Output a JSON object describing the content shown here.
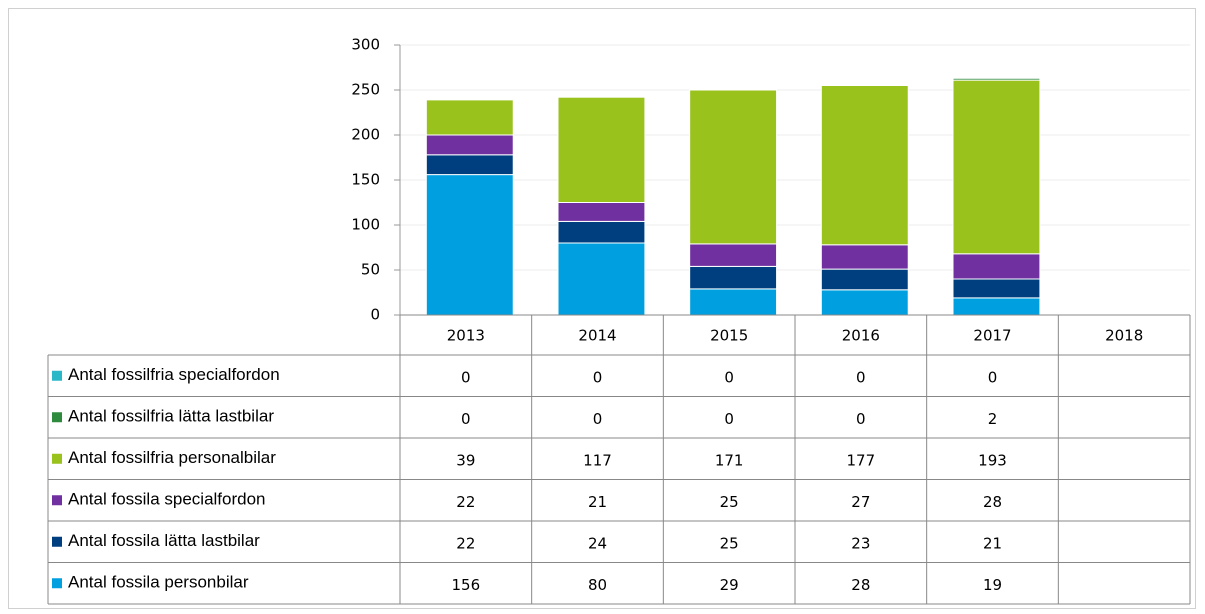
{
  "chart_data": {
    "type": "stacked-bar",
    "categories": [
      "2013",
      "2014",
      "2015",
      "2016",
      "2017",
      "2018"
    ],
    "series": [
      {
        "name": "Antal fossilfria specialfordon",
        "color": "#2ab7c8",
        "values": [
          0,
          0,
          0,
          0,
          0,
          null
        ]
      },
      {
        "name": "Antal fossilfria lätta lastbilar",
        "color": "#2e8b3e",
        "values": [
          0,
          0,
          0,
          0,
          2,
          null
        ]
      },
      {
        "name": "Antal fossilfria personalbilar",
        "color": "#99c21c",
        "values": [
          39,
          117,
          171,
          177,
          193,
          null
        ]
      },
      {
        "name": "Antal fossila specialfordon",
        "color": "#7030a0",
        "values": [
          22,
          21,
          25,
          27,
          28,
          null
        ]
      },
      {
        "name": "Antal fossila lätta lastbilar",
        "color": "#003f7f",
        "values": [
          22,
          24,
          25,
          23,
          21,
          null
        ]
      },
      {
        "name": "Antal fossila personbilar",
        "color": "#00a0e0",
        "values": [
          156,
          80,
          29,
          28,
          19,
          null
        ]
      }
    ],
    "ylim": [
      0,
      300
    ],
    "yticks": [
      0,
      50,
      100,
      150,
      200,
      250,
      300
    ],
    "grid": true,
    "legend": "table"
  }
}
